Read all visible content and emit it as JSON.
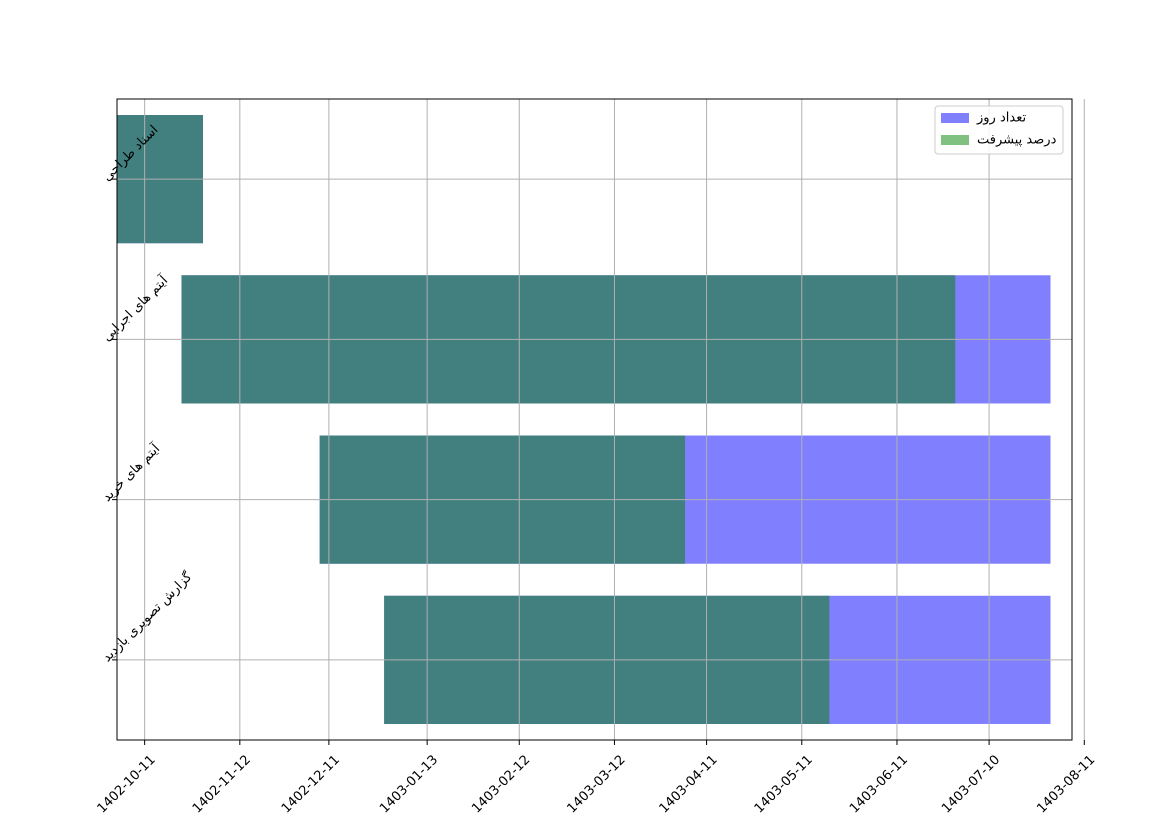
{
  "chart_data": {
    "type": "gantt-bar",
    "title": "",
    "xlabel": "",
    "ylabel": "",
    "grid": true,
    "legend_position": "top-right",
    "colors": {
      "duration": "#8080ff",
      "progress": "#80c080",
      "overlap": "#427f7f",
      "grid": "#b0b0b0",
      "axis": "#000000"
    },
    "x_axis": {
      "type": "date",
      "range_days": [
        -9,
        302
      ],
      "ticks": [
        {
          "label": "1402-10-11",
          "day": 0
        },
        {
          "label": "1402-11-12",
          "day": 31
        },
        {
          "label": "1402-12-11",
          "day": 60
        },
        {
          "label": "1403-01-13",
          "day": 92
        },
        {
          "label": "1403-02-12",
          "day": 122
        },
        {
          "label": "1403-03-12",
          "day": 153
        },
        {
          "label": "1403-04-11",
          "day": 183
        },
        {
          "label": "1403-05-11",
          "day": 214
        },
        {
          "label": "1403-06-11",
          "day": 245
        },
        {
          "label": "1403-07-10",
          "day": 275
        },
        {
          "label": "1403-08-11",
          "day": 306
        }
      ]
    },
    "legend": [
      {
        "label": "تعداد روز",
        "series": "duration"
      },
      {
        "label": "درصد پیشرفت",
        "series": "progress"
      }
    ],
    "tasks": [
      {
        "label": "اسناد طراحی",
        "start_day": -9,
        "duration_days": 28,
        "progress_days": 28
      },
      {
        "label": "آیتم های اجرایی",
        "start_day": 12,
        "duration_days": 283,
        "progress_days": 252
      },
      {
        "label": "آیتم های خرید",
        "start_day": 57,
        "duration_days": 238,
        "progress_days": 119
      },
      {
        "label": "گزارش تصویری بازدید",
        "start_day": 78,
        "duration_days": 217,
        "progress_days": 145
      }
    ]
  }
}
